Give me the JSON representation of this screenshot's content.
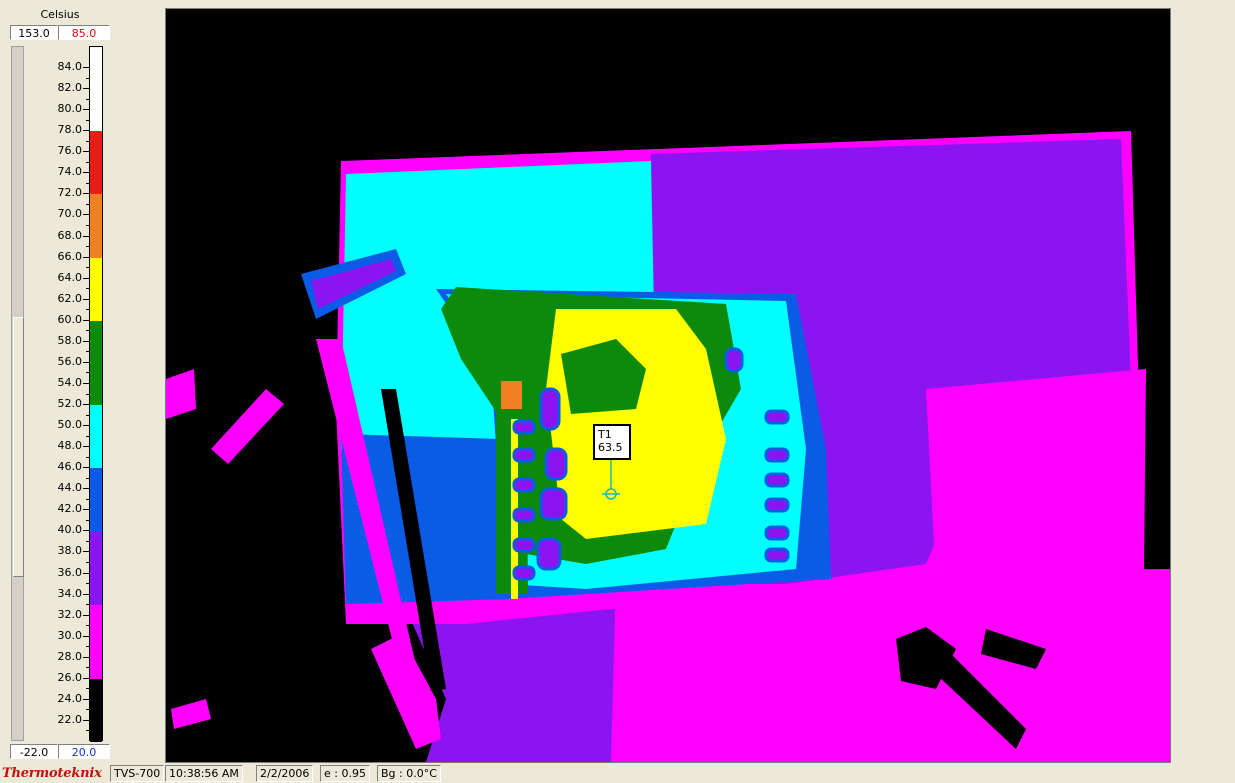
{
  "scale": {
    "unit": "Celsius",
    "span_max": "153.0",
    "level_max": "85.0",
    "span_min": "-22.0",
    "level_min": "20.0",
    "min_value": 20,
    "max_value": 86,
    "ticks": [
      "84.0",
      "82.0",
      "80.0",
      "78.0",
      "76.0",
      "74.0",
      "72.0",
      "70.0",
      "68.0",
      "66.0",
      "64.0",
      "62.0",
      "60.0",
      "58.0",
      "56.0",
      "54.0",
      "52.0",
      "50.0",
      "48.0",
      "46.0",
      "44.0",
      "42.0",
      "40.0",
      "38.0",
      "36.0",
      "34.0",
      "32.0",
      "30.0",
      "28.0",
      "26.0",
      "24.0",
      "22.0"
    ],
    "palette": [
      {
        "from": 78,
        "to": 86,
        "color": "#ffffff"
      },
      {
        "from": 72,
        "to": 78,
        "color": "#e61e14"
      },
      {
        "from": 66,
        "to": 72,
        "color": "#f08020"
      },
      {
        "from": 60,
        "to": 66,
        "color": "#ffff00"
      },
      {
        "from": 52,
        "to": 60,
        "color": "#0b8a0b"
      },
      {
        "from": 46,
        "to": 52,
        "color": "#00ffff"
      },
      {
        "from": 40,
        "to": 46,
        "color": "#0a5ce6"
      },
      {
        "from": 33,
        "to": 40,
        "color": "#8c14f0"
      },
      {
        "from": 26,
        "to": 33,
        "color": "#ff00ff"
      },
      {
        "from": 20,
        "to": 26,
        "color": "#000000"
      }
    ]
  },
  "marker": {
    "label": "T1",
    "value": "63.5"
  },
  "status": {
    "brand": "Thermoteknix",
    "model": "TVS-700",
    "time": "10:38:56 AM",
    "date": "2/2/2006",
    "emissivity": "e : 0.95",
    "background": "Bg : 0.0°C"
  }
}
